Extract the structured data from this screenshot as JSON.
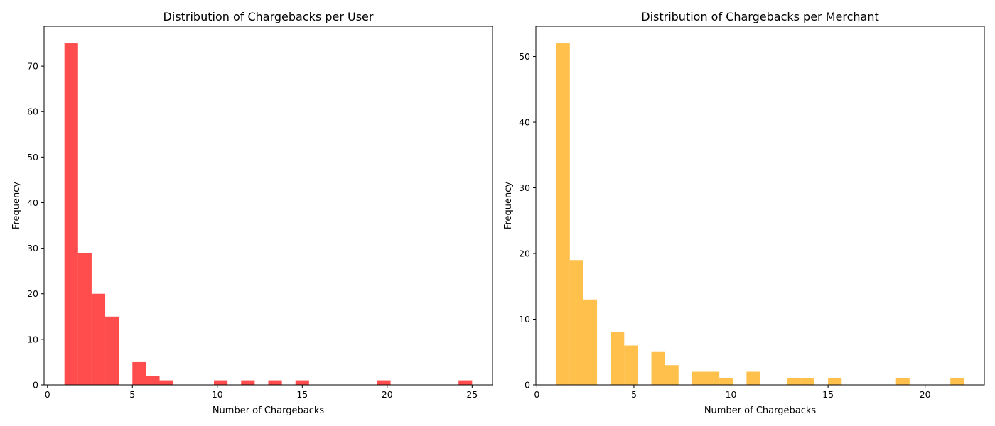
{
  "chart_data": [
    {
      "type": "bar",
      "title": "Distribution of Chargebacks per User",
      "xlabel": "Number of Chargebacks",
      "ylabel": "Frequency",
      "color": "#ff0000",
      "opacity": 0.7,
      "bin_range": [
        1,
        25
      ],
      "bin_count": 30,
      "xlim": [
        -0.2,
        26.2
      ],
      "ylim": [
        0,
        78.75
      ],
      "xticks": [
        0,
        5,
        10,
        15,
        20,
        25
      ],
      "yticks": [
        0,
        10,
        20,
        30,
        40,
        50,
        60,
        70
      ],
      "grid": false,
      "values": [
        75,
        29,
        20,
        15,
        0,
        5,
        2,
        1,
        0,
        0,
        0,
        1,
        0,
        1,
        0,
        1,
        0,
        1,
        0,
        0,
        0,
        0,
        0,
        1,
        0,
        0,
        0,
        0,
        0,
        1
      ]
    },
    {
      "type": "bar",
      "title": "Distribution of Chargebacks per Merchant",
      "xlabel": "Number of Chargebacks",
      "ylabel": "Frequency",
      "color": "#ffa500",
      "opacity": 0.7,
      "bin_range": [
        1,
        22
      ],
      "bin_count": 30,
      "xlim": [
        -0.05,
        23.05
      ],
      "ylim": [
        0,
        54.6
      ],
      "xticks": [
        0,
        5,
        10,
        15,
        20
      ],
      "yticks": [
        0,
        10,
        20,
        30,
        40,
        50
      ],
      "grid": false,
      "values": [
        52,
        19,
        13,
        0,
        8,
        6,
        0,
        5,
        3,
        0,
        2,
        2,
        1,
        0,
        2,
        0,
        0,
        1,
        1,
        0,
        1,
        0,
        0,
        0,
        0,
        1,
        0,
        0,
        0,
        1
      ]
    }
  ]
}
